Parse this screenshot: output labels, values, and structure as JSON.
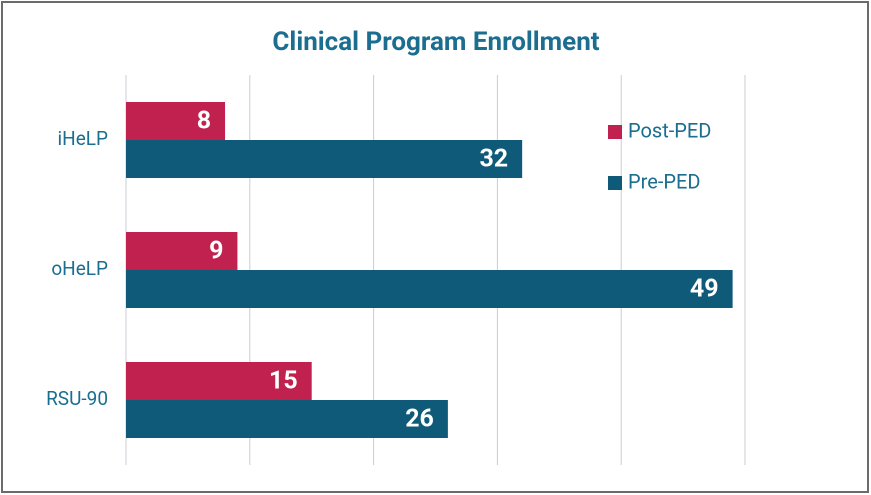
{
  "chart_data": {
    "type": "barh",
    "title": "Clinical Program Enrollment",
    "categories": [
      "iHeLP",
      "oHeLP",
      "RSU-90"
    ],
    "series": [
      {
        "name": "Post-PED",
        "color": "#c0214f",
        "values": [
          8,
          9,
          15
        ]
      },
      {
        "name": "Pre-PED",
        "color": "#0e5a78",
        "values": [
          32,
          49,
          26
        ]
      }
    ],
    "xlim": [
      0,
      50
    ],
    "xticks": [
      0,
      10,
      20,
      30,
      40,
      50
    ],
    "grid": true,
    "legend": "upper right"
  }
}
